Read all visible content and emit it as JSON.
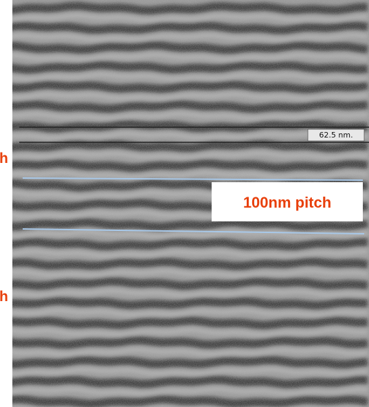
{
  "image": {
    "scale_label": "62.5 nm.",
    "pitch_label": "100nm pitch",
    "clipped_labels": [
      "h",
      "h"
    ]
  }
}
